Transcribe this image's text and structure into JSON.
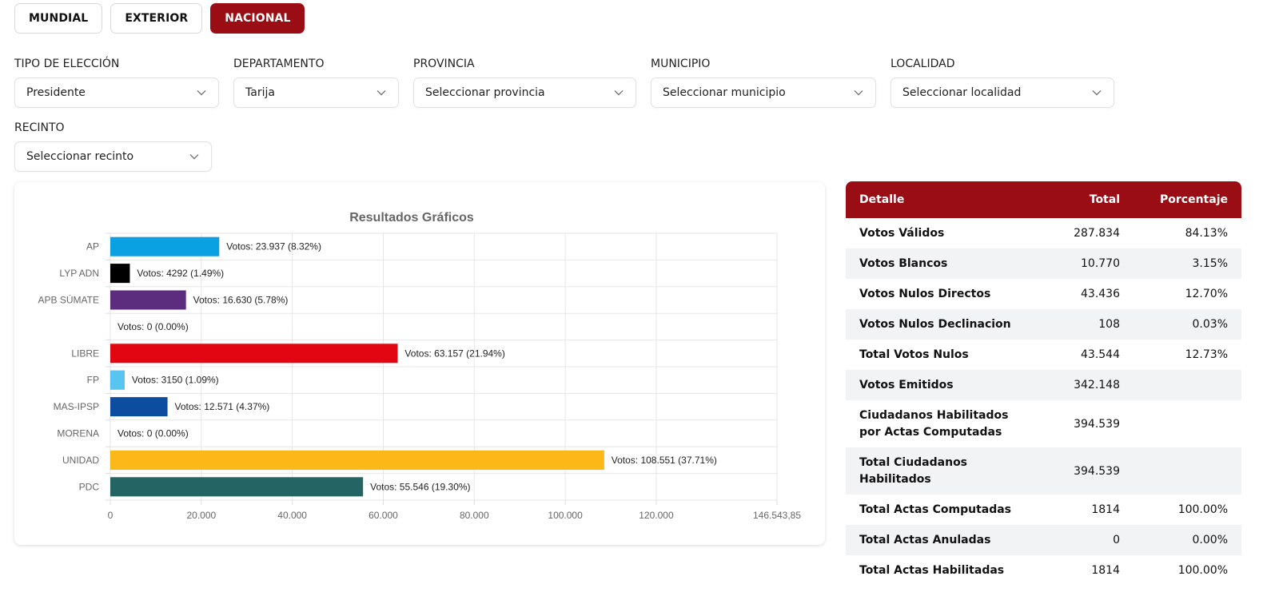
{
  "tabs": [
    {
      "label": "MUNDIAL",
      "active": false
    },
    {
      "label": "EXTERIOR",
      "active": false
    },
    {
      "label": "NACIONAL",
      "active": true
    }
  ],
  "filters": {
    "tipo": {
      "label": "TIPO DE ELECCIÓN",
      "value": "Presidente"
    },
    "departamento": {
      "label": "DEPARTAMENTO",
      "value": "Tarija"
    },
    "provincia": {
      "label": "PROVINCIA",
      "value": "Seleccionar provincia"
    },
    "municipio": {
      "label": "MUNICIPIO",
      "value": "Seleccionar municipio"
    },
    "localidad": {
      "label": "LOCALIDAD",
      "value": "Seleccionar localidad"
    },
    "recinto": {
      "label": "RECINTO",
      "value": "Seleccionar recinto"
    }
  },
  "colors": {
    "accent": "#9b0d14"
  },
  "chart_data": {
    "type": "bar",
    "orientation": "horizontal",
    "title": "Resultados Gráficos",
    "categories": [
      "AP",
      "LYP ADN",
      "APB SÚMATE",
      "",
      "LIBRE",
      "FP",
      "MAS-IPSP",
      "MORENA",
      "UNIDAD",
      "PDC"
    ],
    "values": [
      23937,
      4292,
      16630,
      0,
      63157,
      3150,
      12571,
      0,
      108551,
      55546
    ],
    "labels": [
      "Votos: 23.937 (8.32%)",
      "Votos: 4292 (1.49%)",
      "Votos: 16.630 (5.78%)",
      "Votos: 0 (0.00%)",
      "Votos: 63.157 (21.94%)",
      "Votos: 3150 (1.09%)",
      "Votos: 12.571 (4.37%)",
      "Votos: 0 (0.00%)",
      "Votos: 108.551 (37.71%)",
      "Votos: 55.546 (19.30%)"
    ],
    "colors": [
      "#0aa1e2",
      "#000000",
      "#5c2d7e",
      "#cccccc",
      "#e20613",
      "#58c4f0",
      "#0c4d9f",
      "#8c8c8c",
      "#fbb818",
      "#246463"
    ],
    "xlim": [
      0,
      146543.85
    ],
    "xticks": [
      0,
      20000,
      40000,
      60000,
      80000,
      100000,
      120000,
      146543.85
    ],
    "xtick_labels": [
      "0",
      "20.000",
      "40.000",
      "60.000",
      "80.000",
      "100.000",
      "120.000",
      "146.543,85"
    ],
    "grid": true
  },
  "table": {
    "headers": [
      "Detalle",
      "Total",
      "Porcentaje"
    ],
    "rows": [
      {
        "detalle": "Votos Válidos",
        "total": "287.834",
        "pct": "84.13%"
      },
      {
        "detalle": "Votos Blancos",
        "total": "10.770",
        "pct": "3.15%"
      },
      {
        "detalle": "Votos Nulos Directos",
        "total": "43.436",
        "pct": "12.70%"
      },
      {
        "detalle": "Votos Nulos Declinacion",
        "total": "108",
        "pct": "0.03%"
      },
      {
        "detalle": "Total Votos Nulos",
        "total": "43.544",
        "pct": "12.73%"
      },
      {
        "detalle": "Votos Emitidos",
        "total": "342.148",
        "pct": ""
      },
      {
        "detalle": "Ciudadanos Habilitados por Actas Computadas",
        "total": "394.539",
        "pct": ""
      },
      {
        "detalle": "Total Ciudadanos Habilitados",
        "total": "394.539",
        "pct": ""
      },
      {
        "detalle": "Total Actas Computadas",
        "total": "1814",
        "pct": "100.00%"
      },
      {
        "detalle": "Total Actas Anuladas",
        "total": "0",
        "pct": "0.00%"
      },
      {
        "detalle": "Total Actas Habilitadas",
        "total": "1814",
        "pct": "100.00%"
      }
    ]
  }
}
